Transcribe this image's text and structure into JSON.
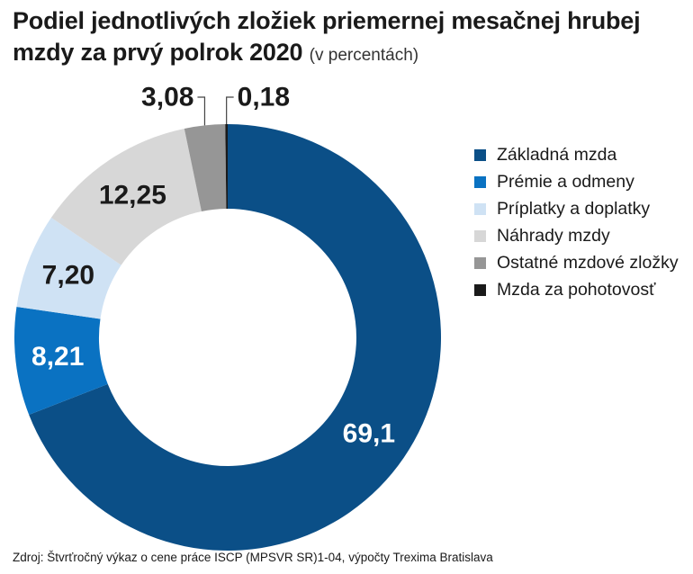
{
  "header": {
    "title": "Podiel jednotlivých zložiek priemernej mesačnej hrubej mzdy za prvý polrok 2020",
    "unit_note": "(v percentách)"
  },
  "chart_data": {
    "type": "pie",
    "variant": "donut",
    "legend_position": "right",
    "slices": [
      {
        "label": "Základná mzda",
        "value": 69.1,
        "value_label": "69,1",
        "color": "#0b4f87"
      },
      {
        "label": "Prémie a odmeny",
        "value": 8.21,
        "value_label": "8,21",
        "color": "#0a72c2"
      },
      {
        "label": "Príplatky a doplatky",
        "value": 7.2,
        "value_label": "7,20",
        "color": "#cfe2f4"
      },
      {
        "label": "Náhrady mzdy",
        "value": 12.25,
        "value_label": "12,25",
        "color": "#d7d7d7"
      },
      {
        "label": "Ostatné mzdové zložky",
        "value": 3.08,
        "value_label": "3,08",
        "color": "#969696"
      },
      {
        "label": "Mzda za pohotovosť",
        "value": 0.18,
        "value_label": "0,18",
        "color": "#1a1a1a"
      }
    ]
  },
  "footer": {
    "source": "Zdroj: Štvrťročný výkaz o cene práce ISCP (MPSVR SR)1-04, výpočty Trexima Bratislava"
  }
}
